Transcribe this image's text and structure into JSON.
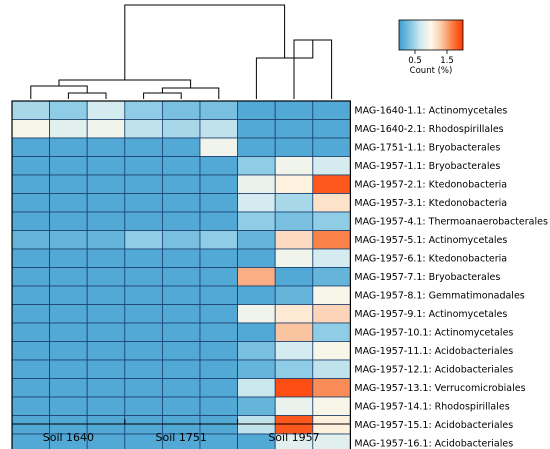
{
  "chart_data": {
    "type": "heatmap",
    "title": "",
    "xlabel": "",
    "ylabel": "",
    "groups": [
      {
        "label": "Soil 1640",
        "columns": 3
      },
      {
        "label": "Soil 1751",
        "columns": 3
      },
      {
        "label": "Soil 1957",
        "columns": 3
      }
    ],
    "rows": [
      "MAG-1640-1.1: Actinomycetales",
      "MAG-1640-2.1: Rhodospirillales",
      "MAG-1751-1.1: Bryobacterales",
      "MAG-1957-1.1: Bryobacterales",
      "MAG-1957-2.1: Ktedonobacteria",
      "MAG-1957-3.1: Ktedonobacteria",
      "MAG-1957-4.1: Thermoanaerobacterales",
      "MAG-1957-5.1: Actinomycetales",
      "MAG-1957-6.1: Ktedonobacteria",
      "MAG-1957-7.1: Bryobacterales",
      "MAG-1957-8.1: Gemmatimonadales",
      "MAG-1957-9.1: Actinomycetales",
      "MAG-1957-10.1: Actinomycetales",
      "MAG-1957-11.1: Acidobacteriales",
      "MAG-1957-12.1: Acidobacteriales",
      "MAG-1957-13.1: Verrucomicrobiales",
      "MAG-1957-14.1: Rhodospirillales",
      "MAG-1957-15.1: Acidobacteriales",
      "MAG-1957-16.1: Acidobacteriales"
    ],
    "values": [
      [
        0.5,
        0.4,
        0.7,
        0.4,
        0.3,
        0.3,
        0.1,
        0.1,
        0.1
      ],
      [
        0.95,
        0.8,
        0.9,
        0.6,
        0.5,
        0.6,
        0.1,
        0.1,
        0.1
      ],
      [
        0.1,
        0.1,
        0.1,
        0.1,
        0.1,
        0.9,
        0.1,
        0.1,
        0.1
      ],
      [
        0.1,
        0.1,
        0.1,
        0.1,
        0.1,
        0.1,
        0.4,
        0.9,
        0.7
      ],
      [
        0.1,
        0.1,
        0.1,
        0.1,
        0.1,
        0.1,
        0.85,
        1.05,
        1.85
      ],
      [
        0.1,
        0.1,
        0.1,
        0.1,
        0.1,
        0.1,
        0.7,
        0.5,
        1.15
      ],
      [
        0.1,
        0.1,
        0.1,
        0.1,
        0.1,
        0.1,
        0.4,
        0.3,
        0.4
      ],
      [
        0.2,
        0.2,
        0.2,
        0.4,
        0.3,
        0.4,
        0.2,
        1.2,
        1.65
      ],
      [
        0.1,
        0.1,
        0.1,
        0.1,
        0.1,
        0.1,
        0.1,
        0.9,
        0.7
      ],
      [
        0.1,
        0.1,
        0.1,
        0.1,
        0.1,
        0.1,
        1.45,
        0.1,
        0.2
      ],
      [
        0.1,
        0.1,
        0.1,
        0.1,
        0.1,
        0.1,
        0.1,
        0.2,
        0.95
      ],
      [
        0.1,
        0.1,
        0.1,
        0.1,
        0.1,
        0.1,
        0.9,
        1.1,
        1.25
      ],
      [
        0.1,
        0.1,
        0.1,
        0.1,
        0.1,
        0.1,
        0.1,
        1.35,
        0.4
      ],
      [
        0.1,
        0.1,
        0.1,
        0.1,
        0.1,
        0.1,
        0.3,
        0.7,
        0.95
      ],
      [
        0.1,
        0.1,
        0.1,
        0.1,
        0.1,
        0.1,
        0.2,
        0.4,
        0.6
      ],
      [
        0.1,
        0.1,
        0.1,
        0.1,
        0.1,
        0.1,
        0.65,
        1.9,
        1.6
      ],
      [
        0.1,
        0.1,
        0.1,
        0.1,
        0.1,
        0.1,
        0.2,
        0.85,
        0.95
      ],
      [
        0.1,
        0.1,
        0.1,
        0.1,
        0.1,
        0.1,
        0.6,
        1.85,
        1.05
      ],
      [
        0.1,
        0.1,
        0.1,
        0.1,
        0.1,
        0.1,
        0.1,
        0.8,
        0.8
      ]
    ],
    "colorbar": {
      "title": "Count (%)",
      "ticks": [
        "0.5",
        "1.5"
      ],
      "tick_values": [
        0.5,
        1.5
      ],
      "range": [
        0,
        2
      ],
      "colors": [
        "#3e9ecf",
        "#7fc4e2",
        "#cfeaf0",
        "#fff8e8",
        "#fbc8a6",
        "#fa7d43",
        "#ff3a00"
      ]
    },
    "column_dendrogram": true,
    "grid": true,
    "cell_border_color": "#1c3f6e"
  }
}
